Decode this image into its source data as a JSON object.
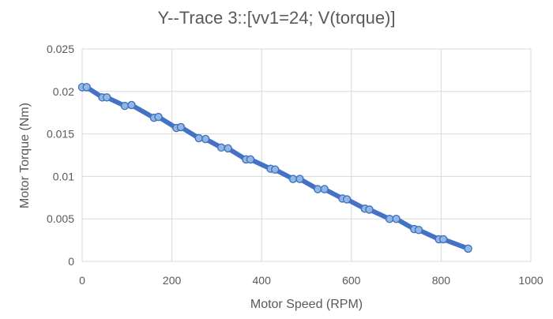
{
  "chart_data": {
    "type": "scatter",
    "title": "Y--Trace 3::[vv1=24; V(torque)]",
    "xlabel": "Motor Speed (RPM)",
    "ylabel": "Motor Torque (Nm)",
    "xlim": [
      0,
      1000
    ],
    "ylim": [
      0,
      0.025
    ],
    "x_ticks": [
      "0",
      "200",
      "400",
      "600",
      "800",
      "1000"
    ],
    "y_ticks": [
      "0",
      "0.005",
      "0.01",
      "0.015",
      "0.02",
      "0.025"
    ],
    "grid": "major-both",
    "legend": "none",
    "series": [
      {
        "color": "#4472c4",
        "marker_color": "#9dc3e6",
        "x": [
          0,
          10,
          45,
          55,
          95,
          110,
          160,
          170,
          210,
          220,
          260,
          275,
          310,
          325,
          365,
          375,
          420,
          430,
          470,
          485,
          525,
          540,
          580,
          590,
          630,
          640,
          685,
          700,
          740,
          750,
          795,
          805,
          860
        ],
        "y": [
          0.0205,
          0.0205,
          0.0193,
          0.0193,
          0.0183,
          0.0184,
          0.0169,
          0.017,
          0.0157,
          0.0158,
          0.0145,
          0.0144,
          0.0134,
          0.0133,
          0.012,
          0.012,
          0.0109,
          0.0108,
          0.0097,
          0.0097,
          0.0085,
          0.0085,
          0.0074,
          0.0073,
          0.0062,
          0.0061,
          0.005,
          0.005,
          0.0038,
          0.0037,
          0.0026,
          0.0026,
          0.0015
        ]
      }
    ]
  }
}
